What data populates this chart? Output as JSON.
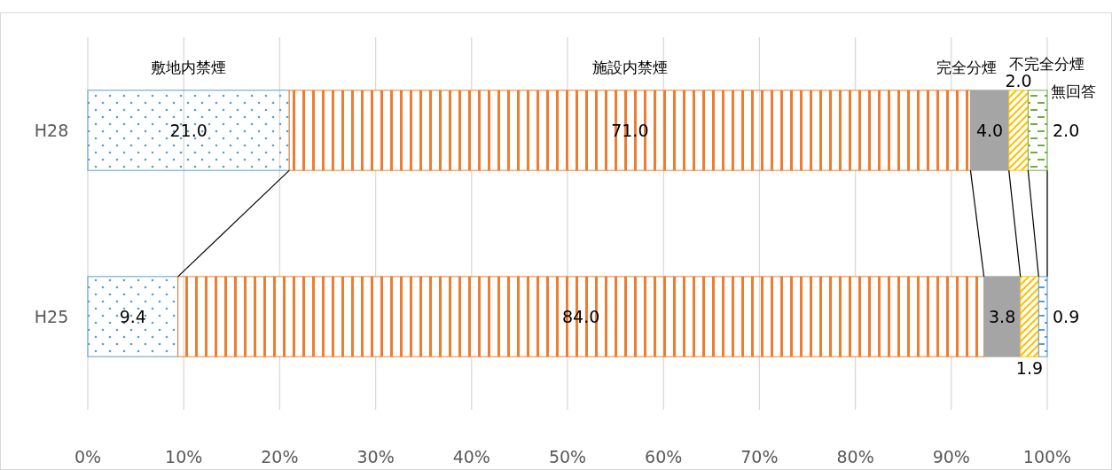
{
  "chart_data": {
    "type": "bar",
    "orientation": "horizontal",
    "stacked": true,
    "categories": [
      "H28",
      "H25"
    ],
    "series": [
      {
        "name": "敷地内禁煙",
        "color": "#5b9bd5",
        "values": [
          21.0,
          9.4
        ],
        "value_labels": [
          "21.0",
          "9.4"
        ]
      },
      {
        "name": "施設内禁煙",
        "color": "#ed7d31",
        "values": [
          71.0,
          84.0
        ],
        "value_labels": [
          "71.0",
          "84.0"
        ]
      },
      {
        "name": "完全分煙",
        "color": "#a5a5a5",
        "values": [
          4.0,
          3.8
        ],
        "value_labels": [
          "4.0",
          "3.8"
        ]
      },
      {
        "name": "不完全分煙",
        "color": "#ffc000",
        "values": [
          2.0,
          1.9
        ],
        "value_labels": [
          "2.0",
          "1.9"
        ]
      },
      {
        "name": "無回答",
        "colors": [
          "#70ad47",
          "#5b9bd5"
        ],
        "values": [
          2.0,
          0.9
        ],
        "value_labels": [
          "2.0",
          "0.9"
        ]
      }
    ],
    "xlim": [
      0,
      100
    ],
    "xticks": [
      {
        "value": 0,
        "label": "0%"
      },
      {
        "value": 10,
        "label": "10%"
      },
      {
        "value": 20,
        "label": "20%"
      },
      {
        "value": 30,
        "label": "30%"
      },
      {
        "value": 40,
        "label": "40%"
      },
      {
        "value": 50,
        "label": "50%"
      },
      {
        "value": 60,
        "label": "60%"
      },
      {
        "value": 70,
        "label": "70%"
      },
      {
        "value": 80,
        "label": "80%"
      },
      {
        "value": 90,
        "label": "90%"
      },
      {
        "value": 100,
        "label": "100%"
      }
    ],
    "grid": "x"
  }
}
